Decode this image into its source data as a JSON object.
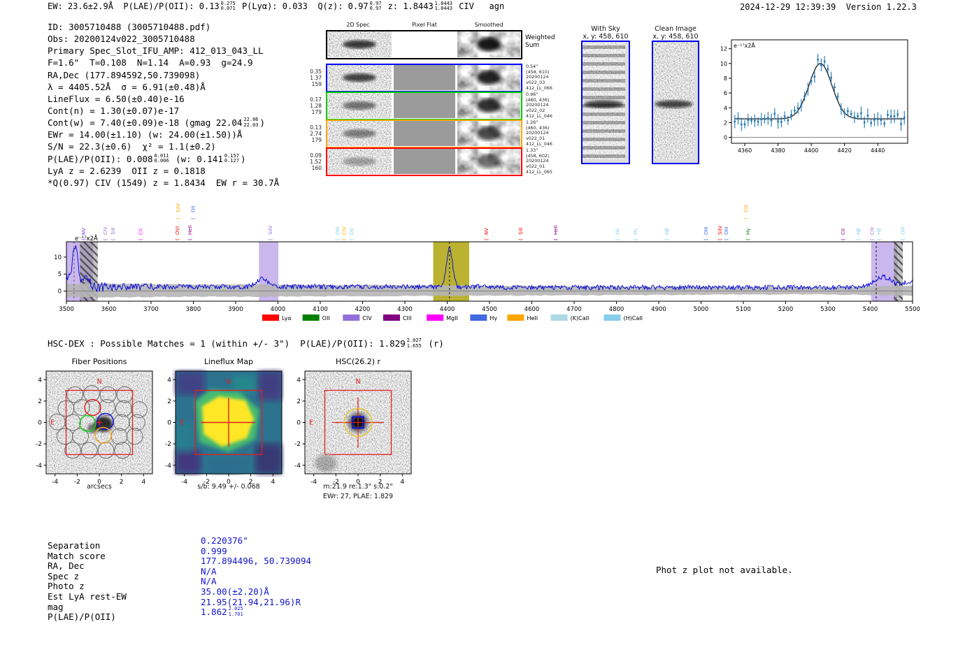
{
  "header": {
    "p1": "EW: 23.6±2.9Å  P(LAE)/P(OII): 0.13",
    "s1_hi": "0.275",
    "s1_lo": "0.071",
    "p2": " P(Lyα): 0.033  Q(z): 0.97",
    "s2_hi": "0.97",
    "s2_lo": "0.97",
    "p3": " z: 1.8443",
    "s3_hi": "1.8443",
    "s3_lo": "1.8443",
    "p4": " CIV   agn",
    "right": "2024-12-29 12:39:39  Version 1.22.3"
  },
  "info": {
    "line1": "ID: 3005710488 (3005710488.pdf)",
    "line2": "Obs: 20200124v022_3005710488",
    "line3": "Primary Spec_Slot_IFU_AMP: 412_013_043_LL",
    "line4": "F=1.6\"  T=0.108  N=1.14  A=0.93  g=24.9",
    "line5": "RA,Dec (177.894592,50.739098)",
    "line6": "λ = 4405.52Å  σ = 6.91(±0.48)Å",
    "line7": "LineFlux = 6.50(±0.40)e-16",
    "line8": "Cont(n) = 1.30(±0.07)e-17",
    "line9a": "Cont(w) = 7.40(±0.09)e-18 (gmag 22.04",
    "line9_hi": "22.06",
    "line9_lo": "22.03",
    "line9b": ")",
    "line10": "EWr = 14.00(±1.10) (w: 24.00(±1.50))Å",
    "line11": "S/N = 22.3(±0.6)  χ² = 1.1(±0.2)",
    "line12a": "P(LAE)/P(OII): 0.008",
    "line12_hi1": "0.011",
    "line12_lo1": "0.006",
    "line12b": " (w: 0.141",
    "line12_hi2": "0.157",
    "line12_lo2": "0.127",
    "line12c": ")",
    "line13": "LyA z = 2.6239  OII z = 0.1818",
    "line14": "*Q(0.97) CIV (1549) z = 1.8434  EW r = 30.7Å"
  },
  "cutouts2d": {
    "col_headers": [
      "2D Spec",
      "Pixel Flat",
      "Smoothed"
    ],
    "weighted_1": "Weighted",
    "weighted_2": "Sum",
    "rows": [
      {
        "left": [
          "0.35",
          "1.37",
          "159"
        ],
        "right": [
          "0.54\"",
          "(458, 610)",
          "20200124",
          "v022_03",
          "412_LL_066"
        ],
        "color": "#0000ff"
      },
      {
        "left": [
          "0.17",
          "1.28",
          "179"
        ],
        "right": [
          "0.96\"",
          "(460, 436)",
          "20200124",
          "v022_02",
          "412_LL_046"
        ],
        "color": "#00cc00"
      },
      {
        "left": [
          "0.13",
          "2.74",
          "179"
        ],
        "right": [
          "1.26\"",
          "(460, 436)",
          "20200124",
          "v022_01",
          "412_LL_046"
        ],
        "color": "#ffa500"
      },
      {
        "left": [
          "0.09",
          "1.52",
          "160"
        ],
        "right": [
          "1.33\"",
          "(458, 602)",
          "20200124",
          "v022_01",
          "412_LL_065"
        ],
        "color": "#ff0000"
      }
    ]
  },
  "sky_panels": {
    "with_sky": {
      "title": "With Sky",
      "subtitle": "x, y: 458, 610"
    },
    "clean": {
      "title": "Clean Image",
      "subtitle": "x, y: 458, 610"
    },
    "border_color": "#0000f0"
  },
  "chart_data": [
    {
      "type": "scatter",
      "name": "emission-line-fit-inset",
      "unit_label": "e⁻¹⁷x2Å",
      "x_ticks": [
        4360,
        4380,
        4400,
        4420,
        4440
      ],
      "y_ticks": [
        0,
        2,
        4,
        6,
        8,
        10,
        12
      ],
      "xlim": [
        4352,
        4458
      ],
      "ylim": [
        -0.8,
        13.2
      ],
      "fit": {
        "center": 4405.52,
        "sigma": 6.91,
        "peak_amplitude": 7.5,
        "continuum": 2.5
      },
      "point_color": "#1f77b4",
      "fit_color": "#2b2b2b"
    },
    {
      "type": "line",
      "name": "full-spectrum",
      "unit_label": "e⁻¹⁷x2Å",
      "xlim": [
        3500,
        5500
      ],
      "ylim": [
        -3,
        14.5
      ],
      "x_ticks": [
        3500,
        3600,
        3700,
        3800,
        3900,
        4000,
        4100,
        4200,
        4300,
        4400,
        4500,
        4600,
        4700,
        4800,
        4900,
        5000,
        5100,
        5200,
        5300,
        5400,
        5500
      ],
      "y_ticks": [
        0,
        5,
        10
      ],
      "series_color": "#0000dd",
      "baseline": 1.3,
      "features": [
        {
          "x": 3521,
          "height": 12.5,
          "note": "blue-end spike"
        },
        {
          "x": 3960,
          "height": 4.5,
          "note": "small bump"
        },
        {
          "x": 4405.5,
          "height": 12.5,
          "note": "primary emission line"
        },
        {
          "x": 5430,
          "height": 6,
          "note": "broad red bump"
        }
      ],
      "regions": [
        {
          "xmin": 3500,
          "xmax": 3563,
          "color": "#9370DB",
          "opacity": 0.5
        },
        {
          "xmin": 3532,
          "xmax": 3574,
          "hatch": true
        },
        {
          "xmin": 3955,
          "xmax": 4001,
          "color": "#9370DB",
          "opacity": 0.5
        },
        {
          "xmin": 4367,
          "xmax": 4452,
          "color": "#b2aa1a",
          "opacity": 0.9
        },
        {
          "xmin": 5402,
          "xmax": 5464,
          "color": "#9370DB",
          "opacity": 0.5
        },
        {
          "xmin": 5456,
          "xmax": 5477,
          "hatch": true
        }
      ],
      "dashed_lines": [
        {
          "x": 3518,
          "color": "#666"
        },
        {
          "x": 4405.5,
          "color": "#111"
        },
        {
          "x": 5414,
          "color": "#111"
        }
      ],
      "line_labels": [
        {
          "label": "NV",
          "x": 3545,
          "color": "#8A2BE2",
          "level": 1
        },
        {
          "label": "CIV",
          "x": 3596,
          "color": "#9370DB",
          "level": 1
        },
        {
          "label": "SiII",
          "x": 3614,
          "color": "#9370DB",
          "level": 1
        },
        {
          "label": "CII",
          "x": 3679,
          "color": "#FF00FF",
          "level": 1
        },
        {
          "label": "OVI",
          "x": 3766,
          "color": "#FF0000",
          "level": 1
        },
        {
          "label": "HeII",
          "x": 3796,
          "color": "#800080",
          "level": 1
        },
        {
          "label": "SiIV",
          "x": 3768,
          "color": "#FFA500",
          "level": 2
        },
        {
          "label": "OII",
          "x": 3803,
          "color": "#4169E1",
          "level": 2
        },
        {
          "label": "SiIV",
          "x": 3986,
          "color": "#9370DB",
          "level": 1
        },
        {
          "label": "OIII",
          "x": 4145,
          "color": "#87CEEB",
          "level": 1
        },
        {
          "label": "CIV",
          "x": 4160,
          "color": "#FFA500",
          "level": 1
        },
        {
          "label": "OII",
          "x": 4178,
          "color": "#87CEEB",
          "level": 1
        },
        {
          "label": "NV",
          "x": 4497,
          "color": "#FF0000",
          "level": 1
        },
        {
          "label": "SiII",
          "x": 4578,
          "color": "#FF0000",
          "level": 1
        },
        {
          "label": "HeII",
          "x": 4660,
          "color": "#800080",
          "level": 1
        },
        {
          "label": "Hδ",
          "x": 4807,
          "color": "#87CEEB",
          "level": 1
        },
        {
          "label": "Hγ",
          "x": 4849,
          "color": "#87CEEB",
          "level": 1
        },
        {
          "label": "Hβ",
          "x": 4923,
          "color": "#87CEEB",
          "level": 1
        },
        {
          "label": "OIII",
          "x": 5016,
          "color": "#4169E1",
          "level": 1
        },
        {
          "label": "SiIV",
          "x": 5049,
          "color": "#FF0000",
          "level": 1
        },
        {
          "label": "OIII",
          "x": 5064,
          "color": "#4169E1",
          "level": 1
        },
        {
          "label": "CIII",
          "x": 5110,
          "color": "#FFA500",
          "level": 2
        },
        {
          "label": "Hγ",
          "x": 5115,
          "color": "#008000",
          "level": 1
        },
        {
          "label": "CII",
          "x": 5340,
          "color": "#800080",
          "level": 1
        },
        {
          "label": "Hβ",
          "x": 5376,
          "color": "#87CEEB",
          "level": 1
        },
        {
          "label": "CIII",
          "x": 5408,
          "color": "#9370DB",
          "level": 1
        },
        {
          "label": "Hβ",
          "x": 5424,
          "color": "#87CEEB",
          "level": 1
        },
        {
          "label": "OIII",
          "x": 5481,
          "color": "#87CEEB",
          "level": 1
        }
      ],
      "legend": [
        {
          "label": "Lyα",
          "color": "#ff0000"
        },
        {
          "label": "OII",
          "color": "#008000"
        },
        {
          "label": "CIV",
          "color": "#9370DB"
        },
        {
          "label": "CIII",
          "color": "#800080"
        },
        {
          "label": "MgII",
          "color": "#ff00ff"
        },
        {
          "label": "Hγ",
          "color": "#4169e1"
        },
        {
          "label": "HeII",
          "color": "#ffa500"
        },
        {
          "label": "(K)CaII",
          "color": "#add8e6"
        },
        {
          "label": "(H)CaII",
          "color": "#87ceeb"
        }
      ]
    }
  ],
  "hsc_match": {
    "a": "HSC-DEX : Possible Matches = 1 (within +/- 3\")  P(LAE)/P(OII): 1.829",
    "hi": "2.027",
    "lo": "1.655",
    "b": " (r)"
  },
  "cutout_plots": {
    "ticks": [
      -4,
      -2,
      0,
      2,
      4
    ],
    "compass": {
      "n": "N",
      "e": "E"
    },
    "fiber": {
      "title": "Fiber Positions",
      "xlabel": "arcsecs"
    },
    "lineflux": {
      "title": "Lineflux Map",
      "xlabel": "s/b: 9.49 +/- 0.068"
    },
    "hsc": {
      "title": "HSC(26.2) r",
      "xlabel": "m:21.9  re:1.3\"  s:0.2\"",
      "xlabel2": "EWr: 27, PLAE: 1.829"
    }
  },
  "match_table": {
    "value_color": "#1212cc",
    "rows": [
      {
        "label": "Separation",
        "value": "0.220376\""
      },
      {
        "label": "Match score",
        "value": "0.999"
      },
      {
        "label": "RA, Dec",
        "value": "177.894496, 50.739094"
      },
      {
        "label": "Spec z",
        "value": "N/A"
      },
      {
        "label": "Photo z",
        "value": "N/A"
      },
      {
        "label": "Est LyA rest-EW",
        "value": "35.00(±2.20)Å"
      },
      {
        "label": "mag",
        "value": "21.95(21.94,21.96)R"
      },
      {
        "label": "P(LAE)/P(OII)",
        "value": "1.862",
        "hi": "2.025",
        "lo": "1.701"
      }
    ]
  },
  "notes": {
    "photz": "Phot z plot not available."
  }
}
